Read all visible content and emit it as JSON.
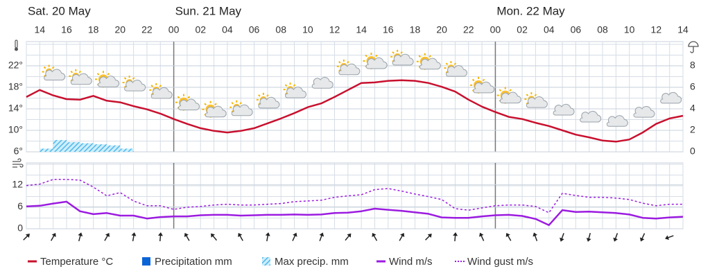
{
  "chart_data": [
    {
      "type": "line",
      "day_labels": [
        "Sat. 20 May",
        null,
        null,
        null,
        null,
        null,
        null,
        null,
        null,
        null,
        null,
        "Sun. 21 May",
        null,
        null,
        null,
        null,
        null,
        null,
        null,
        null,
        null,
        null,
        null,
        null,
        null,
        null,
        null,
        null,
        null,
        null,
        null,
        null,
        null,
        null,
        null,
        "Mon. 22 May",
        null,
        null,
        null,
        null,
        null,
        null,
        null,
        null,
        null,
        null,
        null,
        null,
        null,
        null
      ],
      "categories": [
        null,
        "14",
        null,
        "16",
        null,
        "18",
        null,
        "20",
        null,
        "22",
        null,
        "00",
        null,
        "02",
        null,
        "04",
        null,
        "06",
        null,
        "08",
        null,
        "10",
        null,
        "12",
        null,
        "14",
        null,
        "16",
        null,
        "18",
        null,
        "20",
        null,
        "22",
        null,
        "00",
        null,
        "02",
        null,
        "04",
        null,
        "06",
        null,
        "08",
        null,
        "10",
        null,
        "12",
        null,
        "14"
      ],
      "series": [
        {
          "name": "Temperature °C",
          "color": "#c8102e",
          "values": [
            16.2,
            17.5,
            16.5,
            15.8,
            15.7,
            16.4,
            15.5,
            15.2,
            14.5,
            13.9,
            13.1,
            12.1,
            11.2,
            10.4,
            9.9,
            9.6,
            9.9,
            10.4,
            11.3,
            12.2,
            13.2,
            14.3,
            15.0,
            16.2,
            17.5,
            18.8,
            18.9,
            19.2,
            19.3,
            19.2,
            18.8,
            18.1,
            17.2,
            15.7,
            14.4,
            13.4,
            12.5,
            12.1,
            11.4,
            10.8,
            10.0,
            9.2,
            8.7,
            8.1,
            7.9,
            8.3,
            9.6,
            11.2,
            12.2,
            12.7
          ]
        },
        {
          "name": "Precipitation mm",
          "color": "#0a64d6",
          "type": "bar",
          "axis": "y2",
          "values": [
            0,
            0,
            0,
            0,
            0,
            0,
            0,
            0,
            0,
            0,
            0,
            0,
            0,
            0,
            0,
            0,
            0,
            0,
            0,
            0,
            0,
            0,
            0,
            0,
            0,
            0,
            0,
            0,
            0,
            0,
            0,
            0,
            0,
            0,
            0,
            0,
            0,
            0,
            0,
            0,
            0,
            0,
            0,
            0,
            0,
            0,
            0,
            0,
            0,
            0
          ]
        },
        {
          "name": "Max precip. mm",
          "color": "#4fb8ea",
          "type": "bar",
          "axis": "y2",
          "values": [
            0,
            0.3,
            1.1,
            0.9,
            0.8,
            0.7,
            0.6,
            0.3,
            0,
            0,
            0,
            0,
            0,
            0,
            0,
            0,
            0,
            0,
            0,
            0,
            0,
            0,
            0,
            0,
            0,
            0,
            0,
            0,
            0,
            0,
            0,
            0,
            0,
            0,
            0,
            0,
            0,
            0,
            0,
            0,
            0,
            0,
            0,
            0,
            0,
            0,
            0,
            0,
            0,
            0
          ]
        }
      ],
      "ylim": [
        6,
        26.5
      ],
      "yticks": [
        {
          "value": 6,
          "label": "6°"
        },
        {
          "value": 10,
          "label": "10°"
        },
        {
          "value": 14,
          "label": "14°"
        },
        {
          "value": 18,
          "label": "18°"
        },
        {
          "value": 22,
          "label": "22°"
        }
      ],
      "y2lim": [
        0,
        10.25
      ],
      "y2ticks": [
        0,
        2,
        4,
        6,
        8
      ],
      "grid": true
    },
    {
      "type": "line",
      "series": [
        {
          "name": "Wind m/s",
          "color": "#9b1be0",
          "values": [
            6.1,
            6.3,
            6.9,
            7.4,
            4.8,
            4.0,
            4.3,
            3.6,
            3.6,
            2.8,
            3.2,
            3.4,
            3.4,
            3.7,
            3.8,
            3.8,
            3.6,
            3.7,
            3.8,
            3.8,
            3.9,
            3.8,
            3.9,
            4.3,
            4.4,
            4.8,
            5.5,
            5.2,
            4.9,
            4.5,
            4.1,
            3.1,
            3.0,
            3.0,
            3.4,
            3.7,
            3.8,
            3.5,
            2.7,
            1.0,
            5.1,
            4.6,
            4.7,
            4.5,
            4.3,
            3.9,
            3.0,
            2.8,
            3.1,
            3.3
          ]
        },
        {
          "name": "Wind gust m/s",
          "color": "#9b1be0",
          "dashed": true,
          "values": [
            11.8,
            12.2,
            13.5,
            13.5,
            13.3,
            11.4,
            9.0,
            9.9,
            7.6,
            6.3,
            6.3,
            5.3,
            5.9,
            6.1,
            6.5,
            6.7,
            6.5,
            6.5,
            6.7,
            6.9,
            7.4,
            7.6,
            7.8,
            8.6,
            9.0,
            9.3,
            10.7,
            11.0,
            10.3,
            9.5,
            8.8,
            8.0,
            5.5,
            5.1,
            5.7,
            6.3,
            6.5,
            6.5,
            6.1,
            4.4,
            9.7,
            9.1,
            8.6,
            8.6,
            8.4,
            8.0,
            7.0,
            6.3,
            6.7,
            6.7
          ]
        }
      ],
      "wind_direction": [
        45,
        null,
        30,
        null,
        15,
        null,
        30,
        null,
        10,
        null,
        5,
        null,
        330,
        null,
        320,
        null,
        330,
        null,
        10,
        null,
        25,
        null,
        20,
        null,
        40,
        null,
        330,
        null,
        30,
        null,
        45,
        null,
        5,
        null,
        335,
        null,
        330,
        null,
        340,
        null,
        200,
        null,
        195,
        null,
        200,
        null,
        205,
        null,
        250,
        null
      ],
      "ylim": [
        0,
        18
      ],
      "yticks": [
        0,
        6,
        12
      ],
      "grid": true
    }
  ]
}
